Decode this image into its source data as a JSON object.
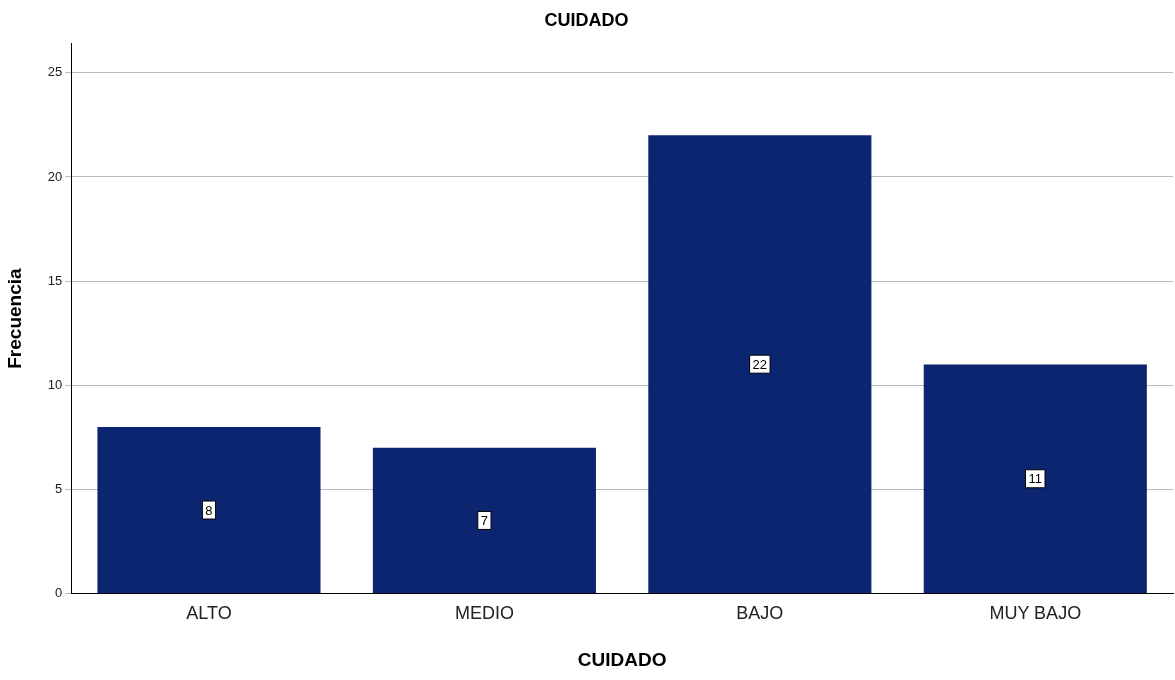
{
  "chart_data": {
    "type": "bar",
    "title": "CUIDADO",
    "xlabel": "CUIDADO",
    "ylabel": "Frecuencia",
    "categories": [
      "ALTO",
      "MEDIO",
      "BAJO",
      "MUY BAJO"
    ],
    "values": [
      8,
      7,
      22,
      11
    ],
    "color": "#0b2570",
    "ylim": [
      0,
      26.4
    ],
    "yticks": [
      0,
      5,
      10,
      15,
      20,
      25
    ],
    "grid": "y",
    "data_labels": true
  }
}
